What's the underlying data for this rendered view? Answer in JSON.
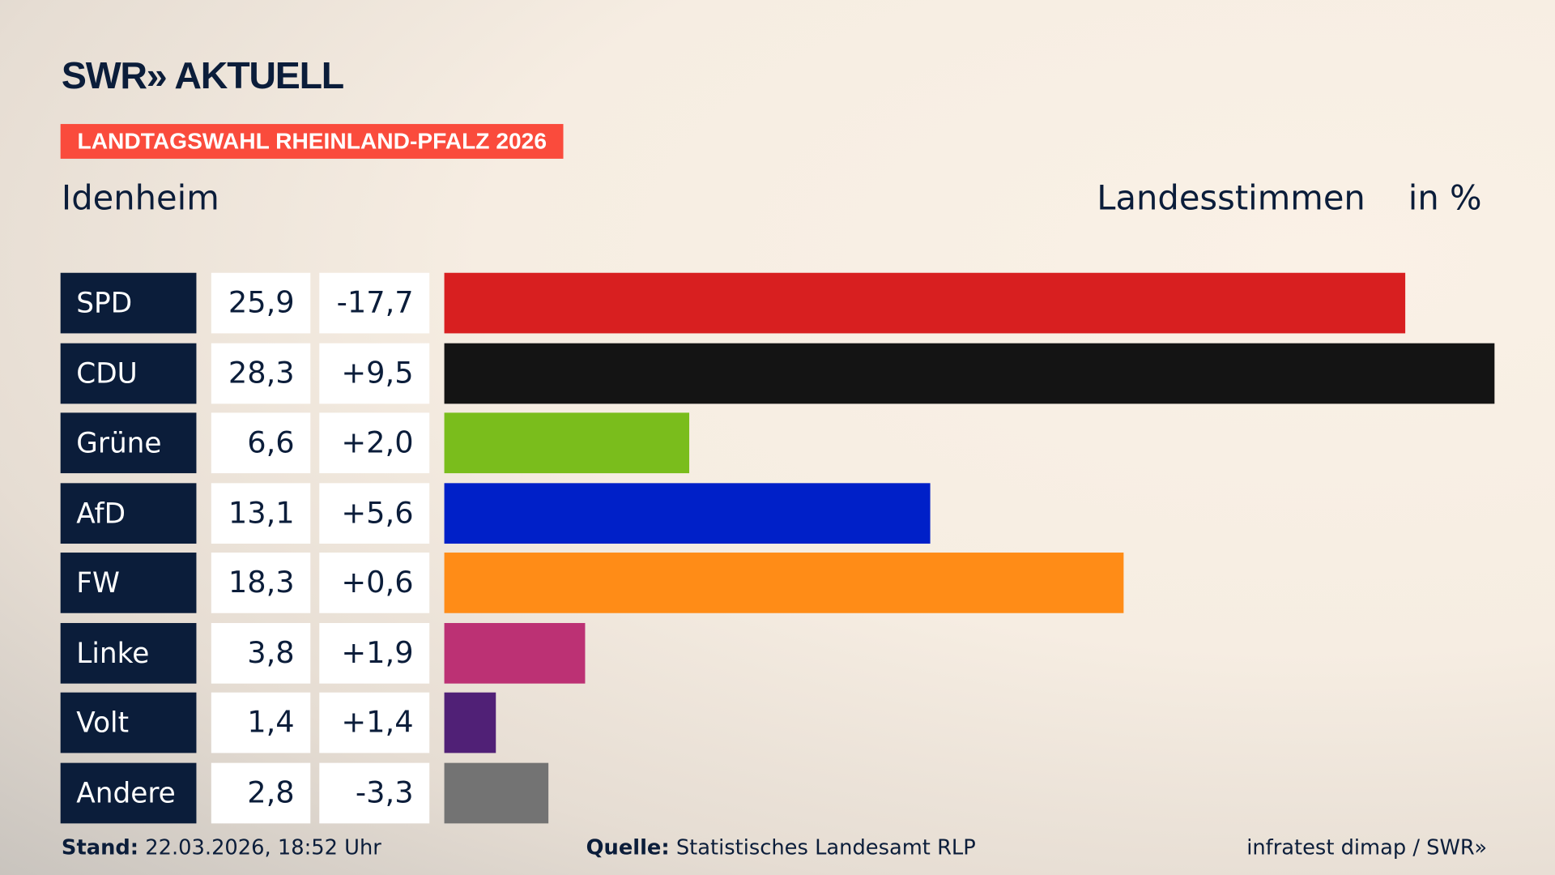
{
  "header": {
    "logo": "SWR» AKTUELL",
    "badge": "LANDTAGSWAHL RHEINLAND-PFALZ 2026",
    "place": "Idenheim",
    "measure": "Landesstimmen",
    "unit": "in %"
  },
  "chart_data": {
    "type": "bar",
    "orientation": "horizontal",
    "categories": [
      "SPD",
      "CDU",
      "Grüne",
      "AfD",
      "FW",
      "Linke",
      "Volt",
      "Andere"
    ],
    "values": [
      25.9,
      28.3,
      6.6,
      13.1,
      18.3,
      3.8,
      1.4,
      2.8
    ],
    "value_labels": [
      "25,9",
      "28,3",
      "6,6",
      "13,1",
      "18,3",
      "3,8",
      "1,4",
      "2,8"
    ],
    "diff_labels": [
      "-17,7",
      "+9,5",
      "+2,0",
      "+5,6",
      "+0,6",
      "+1,9",
      "+1,4",
      "-3,3"
    ],
    "colors": [
      "#d81f20",
      "#141414",
      "#7abd1c",
      "#0020c8",
      "#ff8c17",
      "#bc3174",
      "#502076",
      "#737373"
    ],
    "xlim": [
      0,
      28.3
    ]
  },
  "footer": {
    "stand_label": "Stand:",
    "stand_value": "22.03.2026, 18:52 Uhr",
    "source_label": "Quelle:",
    "source_value": "Statistisches Landesamt RLP",
    "credit": "infratest dimap / SWR»"
  }
}
